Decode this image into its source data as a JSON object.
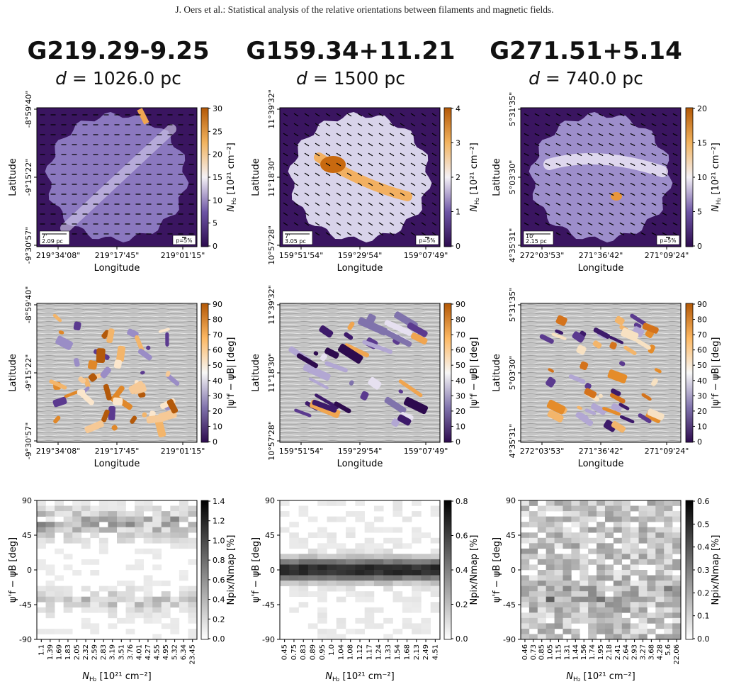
{
  "header": {
    "running_head": "J. Oers et al.: Statistical analysis of the relative orientations between filaments and magnetic fields."
  },
  "columns": [
    {
      "name": "G219.29-9.25",
      "distance": "1026.0 pc",
      "row1": {
        "ylabel": "Latitude",
        "xlabel": "Longitude",
        "yticks": [
          "-8°59'40\"",
          "-9°15'22\"",
          "-9°30'57\""
        ],
        "xticks": [
          "219°34'08\"",
          "219°17'45\"",
          "219°01'15\""
        ],
        "scalebar": [
          "7'",
          "2.09 pc"
        ],
        "pol_key": "p=5%",
        "cbar_ticks": [
          "30",
          "25",
          "20",
          "15",
          "10",
          "5",
          "0"
        ],
        "cbar_label": "N_H2 [10^21 cm^-2]"
      },
      "row2": {
        "ylabel": "Latitude",
        "xlabel": "Longitude",
        "yticks": [
          "-8°59'40\"",
          "-9°15'22\"",
          "-9°30'57\""
        ],
        "xticks": [
          "219°34'08\"",
          "219°17'45\"",
          "219°01'15\""
        ],
        "cbar_ticks": [
          "90",
          "80",
          "70",
          "60",
          "50",
          "40",
          "30",
          "20",
          "10",
          "0"
        ],
        "cbar_label": "|ψ'f − ψB| [deg]"
      },
      "row3": {
        "yticks": [
          "90",
          "45",
          "0",
          "-45",
          "-90"
        ],
        "xticks": [
          "1.1",
          "1.39",
          "1.69",
          "1.83",
          "2.05",
          "2.32",
          "2.59",
          "2.83",
          "3.19",
          "3.51",
          "3.76",
          "4.01",
          "4.27",
          "4.55",
          "4.95",
          "5.32",
          "6.34",
          "23.45"
        ],
        "cbar_ticks": [
          "1.4",
          "1.2",
          "1.0",
          "0.8",
          "0.6",
          "0.4",
          "0.2",
          "0.0"
        ],
        "ylabel": "ψ'f − ψB [deg]",
        "xlabel": "N_H2 [10^21 cm^-2]",
        "cbar_label": "N_pix/N_map [%]"
      }
    },
    {
      "name": "G159.34+11.21",
      "distance": "1500 pc",
      "row1": {
        "ylabel": "Latitude",
        "xlabel": "Longitude",
        "yticks": [
          "11°39'32\"",
          "11°18'30\"",
          "10°57'28\""
        ],
        "xticks": [
          "159°51'54\"",
          "159°29'54\"",
          "159°07'49\""
        ],
        "scalebar": [
          "7'",
          "3.05 pc"
        ],
        "pol_key": "p=5%",
        "cbar_ticks": [
          "4",
          "3",
          "2",
          "1",
          "0"
        ],
        "cbar_label": "N_H2 [10^21 cm^-2]"
      },
      "row2": {
        "ylabel": "Latitude",
        "xlabel": "Longitude",
        "yticks": [
          "11°39'32\"",
          "11°18'30\"",
          "10°57'28\""
        ],
        "xticks": [
          "159°51'54\"",
          "159°29'54\"",
          "159°07'49\""
        ],
        "cbar_ticks": [
          "90",
          "80",
          "70",
          "60",
          "50",
          "40",
          "30",
          "20",
          "10",
          "0"
        ],
        "cbar_label": "|ψ'f − ψB| [deg]"
      },
      "row3": {
        "yticks": [
          "90",
          "45",
          "0",
          "-45",
          "-90"
        ],
        "xticks": [
          "0.45",
          "0.75",
          "0.83",
          "0.89",
          "0.95",
          "1.0",
          "1.04",
          "1.08",
          "1.12",
          "1.17",
          "1.24",
          "1.33",
          "1.54",
          "1.68",
          "2.13",
          "2.49",
          "4.51"
        ],
        "cbar_ticks": [
          "0.8",
          "0.6",
          "0.4",
          "0.2",
          "0.0"
        ],
        "ylabel": "ψ'f − ψB [deg]",
        "xlabel": "N_H2 [10^21 cm^-2]",
        "cbar_label": "N_pix/N_map [%]"
      }
    },
    {
      "name": "G271.51+5.14",
      "distance": "740.0 pc",
      "row1": {
        "ylabel": "Latitude",
        "xlabel": "Longitude",
        "yticks": [
          "5°31'35\"",
          "5°03'30\"",
          "4°35'31\""
        ],
        "xticks": [
          "272°03'53\"",
          "271°36'42\"",
          "271°09'24\""
        ],
        "scalebar": [
          "10'",
          "2.15 pc"
        ],
        "pol_key": "p=5%",
        "cbar_ticks": [
          "20",
          "15",
          "10",
          "5",
          "0"
        ],
        "cbar_label": "N_H2 [10^21 cm^-2]"
      },
      "row2": {
        "ylabel": "Latitude",
        "xlabel": "Longitude",
        "yticks": [
          "5°31'35\"",
          "5°03'30\"",
          "4°35'31\""
        ],
        "xticks": [
          "272°03'53\"",
          "271°36'42\"",
          "271°09'24\""
        ],
        "cbar_ticks": [
          "90",
          "80",
          "70",
          "60",
          "50",
          "40",
          "30",
          "20",
          "10",
          "0"
        ],
        "cbar_label": "|ψ'f − ψB| [deg]"
      },
      "row3": {
        "yticks": [
          "90",
          "45",
          "0",
          "-45",
          "-90"
        ],
        "xticks": [
          "0.46",
          "0.73",
          "0.85",
          "1.05",
          "1.15",
          "1.31",
          "1.44",
          "1.56",
          "1.74",
          "1.95",
          "2.18",
          "2.41",
          "2.64",
          "2.93",
          "3.27",
          "3.68",
          "4.28",
          "5.6",
          "22.06"
        ],
        "cbar_ticks": [
          "0.6",
          "0.5",
          "0.4",
          "0.3",
          "0.2",
          "0.1",
          "0.0"
        ],
        "ylabel": "ψ'f − ψB [deg]",
        "xlabel": "N_H2 [10^21 cm^-2]",
        "cbar_label": "N_pix/N_map [%]"
      }
    }
  ],
  "colors": {
    "background": "#3a1560",
    "orange": "#b3590a",
    "grey": "#bdbdbd"
  }
}
